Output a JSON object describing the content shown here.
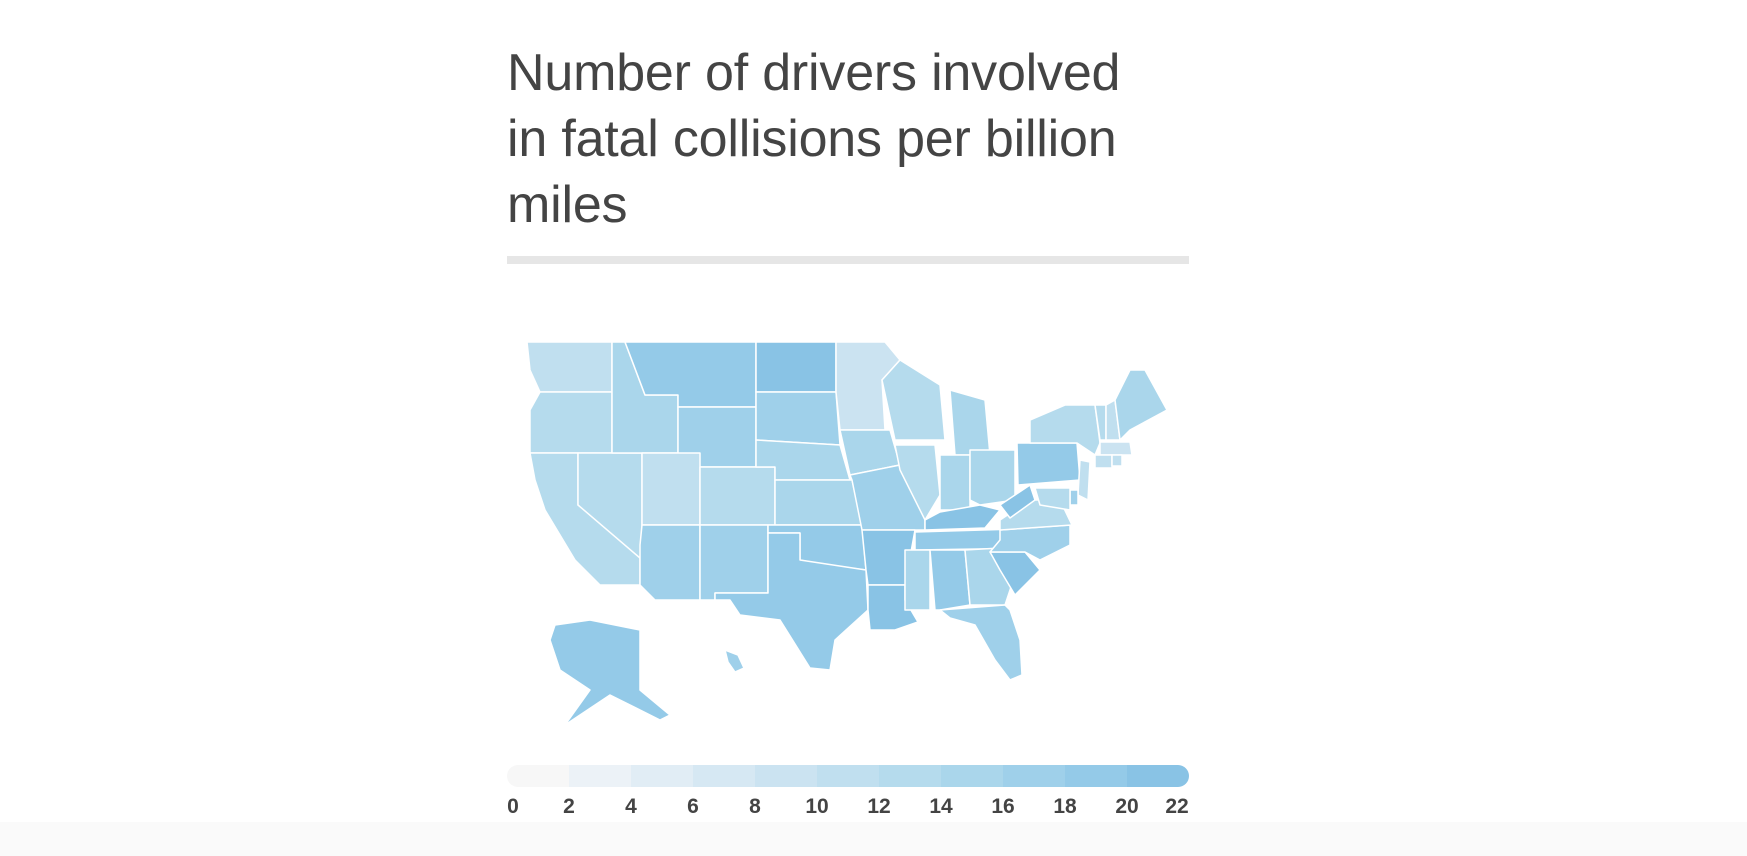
{
  "title": "Number of drivers involved in fatal collisions per billion miles",
  "legend": {
    "ticks": [
      "0",
      "2",
      "4",
      "6",
      "8",
      "10",
      "12",
      "14",
      "16",
      "18",
      "20",
      "22"
    ],
    "colors": [
      "#f7f7f7",
      "#ecf2f7",
      "#e1edf5",
      "#d6e8f3",
      "#cbe3f1",
      "#c0dfef",
      "#b5dbed",
      "#aad6eb",
      "#9fd0ea",
      "#94cae8",
      "#89c3e5"
    ]
  },
  "map": {
    "states": [
      {
        "name": "WA",
        "value": 10.6
      },
      {
        "name": "OR",
        "value": 12.8
      },
      {
        "name": "CA",
        "value": 12.0
      },
      {
        "name": "NV",
        "value": 13.6
      },
      {
        "name": "ID",
        "value": 15.3
      },
      {
        "name": "MT",
        "value": 19.4
      },
      {
        "name": "WY",
        "value": 17.1
      },
      {
        "name": "UT",
        "value": 11.4
      },
      {
        "name": "AZ",
        "value": 17.2
      },
      {
        "name": "CO",
        "value": 13.6
      },
      {
        "name": "NM",
        "value": 17.2
      },
      {
        "name": "ND",
        "value": 23.9
      },
      {
        "name": "SD",
        "value": 17.6
      },
      {
        "name": "NE",
        "value": 14.1
      },
      {
        "name": "KS",
        "value": 15.7
      },
      {
        "name": "OK",
        "value": 19.9
      },
      {
        "name": "TX",
        "value": 19.4
      },
      {
        "name": "MN",
        "value": 9.6
      },
      {
        "name": "IA",
        "value": 15.3
      },
      {
        "name": "MO",
        "value": 16.1
      },
      {
        "name": "AR",
        "value": 22.4
      },
      {
        "name": "LA",
        "value": 20.5
      },
      {
        "name": "WI",
        "value": 13.2
      },
      {
        "name": "IL",
        "value": 12.8
      },
      {
        "name": "MI",
        "value": 14.1
      },
      {
        "name": "IN",
        "value": 14.5
      },
      {
        "name": "OH",
        "value": 14.1
      },
      {
        "name": "KY",
        "value": 21.4
      },
      {
        "name": "TN",
        "value": 19.5
      },
      {
        "name": "MS",
        "value": 15.7
      },
      {
        "name": "AL",
        "value": 18.6
      },
      {
        "name": "GA",
        "value": 15.6
      },
      {
        "name": "FL",
        "value": 17.9
      },
      {
        "name": "SC",
        "value": 23.9
      },
      {
        "name": "NC",
        "value": 16.8
      },
      {
        "name": "VA",
        "value": 12.7
      },
      {
        "name": "WV",
        "value": 23.8
      },
      {
        "name": "PA",
        "value": 18.2
      },
      {
        "name": "NY",
        "value": 12.3
      },
      {
        "name": "VT",
        "value": 13.6
      },
      {
        "name": "NH",
        "value": 11.6
      },
      {
        "name": "ME",
        "value": 15.1
      },
      {
        "name": "MA",
        "value": 8.2
      },
      {
        "name": "CT",
        "value": 10.8
      },
      {
        "name": "RI",
        "value": 11.1
      },
      {
        "name": "NJ",
        "value": 11.2
      },
      {
        "name": "DE",
        "value": 16.2
      },
      {
        "name": "MD",
        "value": 12.5
      },
      {
        "name": "AK",
        "value": 18.1
      },
      {
        "name": "HI",
        "value": 17.5
      }
    ]
  }
}
